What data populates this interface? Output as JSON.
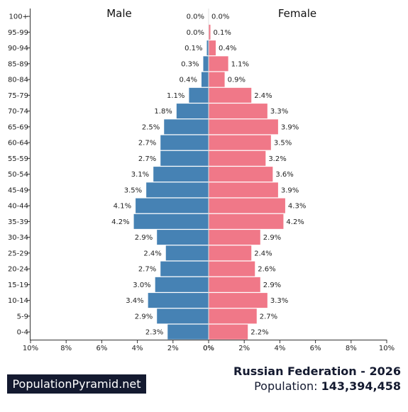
{
  "chart_data": {
    "type": "bar",
    "orientation": "horizontal-pyramid",
    "categories": [
      "0-4",
      "5-9",
      "10-14",
      "15-19",
      "20-24",
      "25-29",
      "30-34",
      "35-39",
      "40-44",
      "45-49",
      "50-54",
      "55-59",
      "60-64",
      "65-69",
      "70-74",
      "75-79",
      "80-84",
      "85-89",
      "90-94",
      "95-99",
      "100+"
    ],
    "series": [
      {
        "name": "Male",
        "color": "#4682b4",
        "values": [
          2.3,
          2.9,
          3.4,
          3.0,
          2.7,
          2.4,
          2.9,
          4.2,
          4.1,
          3.5,
          3.1,
          2.7,
          2.7,
          2.5,
          1.8,
          1.1,
          0.4,
          0.3,
          0.1,
          0.0,
          0.0
        ],
        "labels": [
          "2.3%",
          "2.9%",
          "3.4%",
          "3.0%",
          "2.7%",
          "2.4%",
          "2.9%",
          "4.2%",
          "4.1%",
          "3.5%",
          "3.1%",
          "2.7%",
          "2.7%",
          "2.5%",
          "1.8%",
          "1.1%",
          "0.4%",
          "0.3%",
          "0.1%",
          "0.0%",
          "0.0%"
        ]
      },
      {
        "name": "Female",
        "color": "#f07888",
        "values": [
          2.2,
          2.7,
          3.3,
          2.9,
          2.6,
          2.4,
          2.9,
          4.2,
          4.3,
          3.9,
          3.6,
          3.2,
          3.5,
          3.9,
          3.3,
          2.4,
          0.9,
          1.1,
          0.4,
          0.1,
          0.0
        ],
        "labels": [
          "2.2%",
          "2.7%",
          "3.3%",
          "2.9%",
          "2.6%",
          "2.4%",
          "2.9%",
          "4.2%",
          "4.3%",
          "3.9%",
          "3.6%",
          "3.2%",
          "3.5%",
          "3.9%",
          "3.3%",
          "2.4%",
          "0.9%",
          "1.1%",
          "0.4%",
          "0.1%",
          "0.0%"
        ]
      }
    ],
    "xlim": [
      0,
      10
    ],
    "x_ticks_left": [
      "10%",
      "8%",
      "6%",
      "4%",
      "2%",
      "0%"
    ],
    "x_ticks_right": [
      "0%",
      "2%",
      "4%",
      "6%",
      "8%",
      "10%"
    ],
    "grid": false
  },
  "footer": {
    "brand": "PopulationPyramid.net",
    "country_year": "Russian Federation - 2026",
    "population_label": "Population:",
    "population_value": "143,394,458"
  }
}
